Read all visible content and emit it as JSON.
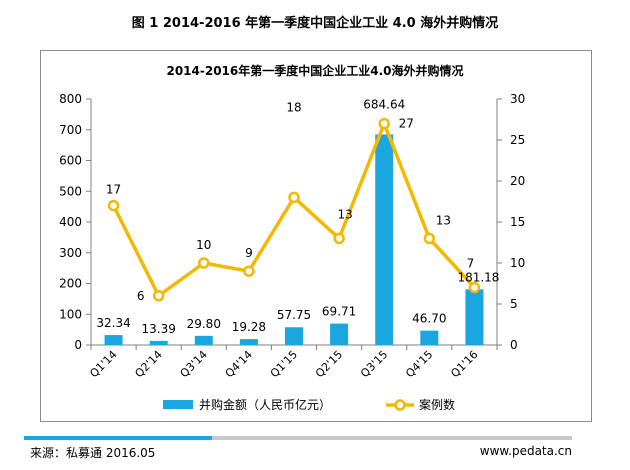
{
  "figure_title": "图 1 2014-2016 年第一季度中国企业工业 4.0 海外并购情况",
  "source": "来源：私募通 2016.05",
  "website": "www.pedata.cn",
  "colors": {
    "bar": "#1aa7df",
    "line": "#f5b800",
    "marker_fill": "#ffffff"
  },
  "chart_data": {
    "type": "bar",
    "title": "2014-2016年第一季度中国企业工业4.0海外并购情况",
    "categories": [
      "Q1'14",
      "Q2'14",
      "Q3'14",
      "Q4'14",
      "Q1'15",
      "Q2'15",
      "Q3'15",
      "Q4'15",
      "Q1'16"
    ],
    "series": [
      {
        "name": "并购金额（人民币亿元）",
        "type": "bar",
        "axis": "left",
        "values": [
          32.34,
          13.39,
          29.8,
          19.28,
          57.75,
          69.71,
          684.64,
          46.7,
          181.18
        ],
        "labels": [
          "32.34",
          "13.39",
          "29.80",
          "19.28",
          "57.75",
          "69.71",
          "684.64",
          "46.70",
          "181.18"
        ]
      },
      {
        "name": "案例数",
        "type": "line",
        "axis": "right",
        "values": [
          17,
          6,
          10,
          9,
          18,
          13,
          27,
          13,
          7
        ],
        "labels": [
          "17",
          "6",
          "10",
          "9",
          "18",
          "13",
          "27",
          "13",
          "7"
        ]
      }
    ],
    "y_left": {
      "min": 0,
      "max": 800,
      "ticks": [
        "0",
        "100",
        "200",
        "300",
        "400",
        "500",
        "600",
        "700",
        "800"
      ]
    },
    "y_right": {
      "min": 0,
      "max": 30,
      "ticks": [
        "0",
        "5",
        "10",
        "15",
        "20",
        "25",
        "30"
      ]
    },
    "grid": false,
    "legend_position": "bottom"
  }
}
